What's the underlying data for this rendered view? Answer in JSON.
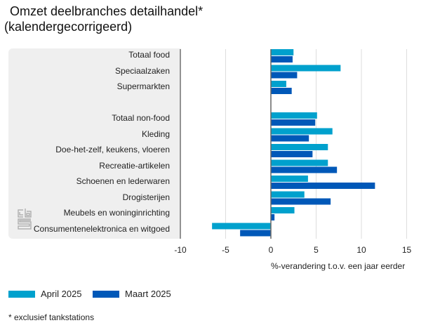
{
  "chart_data": {
    "type": "bar",
    "orientation": "horizontal",
    "title": "Omzet deelbranches detailhandel*",
    "subtitle": "(kalendergecorrigeerd)",
    "xlabel": "%-verandering t.o.v. een jaar eerder",
    "ylabel": "",
    "xlim": [
      -10,
      17
    ],
    "xticks": [
      "-10",
      "-5",
      "0",
      "5",
      "10",
      "15"
    ],
    "grid": true,
    "legend_position": "bottom-left",
    "categories": [
      "Totaal food",
      "Speciaalzaken",
      "Supermarkten",
      "",
      "Totaal non-food",
      "Kleding",
      "Doe-het-zelf, keukens, vloeren",
      "Recreatie-artikelen",
      "Schoenen en lederwaren",
      "Drogisterijen",
      "Meubels en woninginrichting",
      "Consumentenelektronica en witgoed"
    ],
    "series": [
      {
        "name": "April 2025",
        "color": "#00a1cd",
        "values": [
          2.5,
          7.7,
          1.7,
          null,
          5.1,
          6.8,
          6.3,
          6.3,
          4.1,
          3.7,
          2.6,
          -6.5
        ]
      },
      {
        "name": "Maart 2025",
        "color": "#0058b8",
        "values": [
          2.4,
          2.9,
          2.3,
          null,
          4.9,
          4.2,
          4.6,
          7.3,
          11.5,
          6.6,
          0.4,
          -3.4
        ]
      }
    ],
    "footnote": "* exclusief tankstations"
  }
}
